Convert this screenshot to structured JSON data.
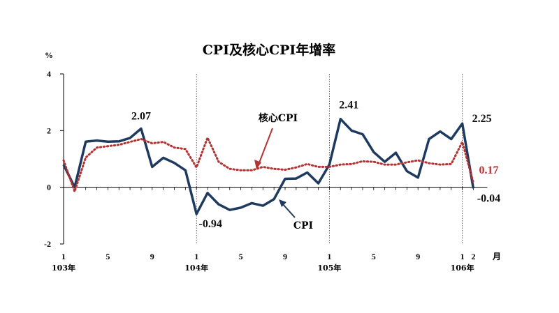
{
  "chart_data": {
    "type": "line",
    "title": "CPI及核心CPI年增率",
    "y_unit": "%",
    "ylim": [
      -2,
      4
    ],
    "yticks": [
      "4",
      "2",
      "0",
      "-2"
    ],
    "x_tick_labels": [
      {
        "label": "1",
        "year": "103年"
      },
      {
        "label": "5",
        "year": ""
      },
      {
        "label": "9",
        "year": ""
      },
      {
        "label": "1",
        "year": "104年"
      },
      {
        "label": "5",
        "year": ""
      },
      {
        "label": "9",
        "year": ""
      },
      {
        "label": "1",
        "year": "105年"
      },
      {
        "label": "5",
        "year": ""
      },
      {
        "label": "9",
        "year": ""
      },
      {
        "label": "1",
        "year": "106年"
      },
      {
        "label": "2",
        "year": ""
      }
    ],
    "x_unit": "月",
    "series": [
      {
        "name": "CPI",
        "color": "#1f3a5f",
        "style": "solid",
        "values": [
          0.8,
          0.0,
          1.61,
          1.65,
          1.61,
          1.62,
          1.74,
          2.07,
          0.72,
          1.04,
          0.86,
          0.6,
          -0.94,
          -0.2,
          -0.6,
          -0.8,
          -0.72,
          -0.56,
          -0.65,
          -0.42,
          0.3,
          0.31,
          0.52,
          0.14,
          0.8,
          2.41,
          2.0,
          1.87,
          1.24,
          0.9,
          1.22,
          0.57,
          0.34,
          1.7,
          1.97,
          1.7,
          2.25,
          -0.04
        ]
      },
      {
        "name": "核心CPI",
        "color": "#b33333",
        "style": "dotted",
        "values": [
          0.95,
          -0.15,
          1.05,
          1.4,
          1.45,
          1.5,
          1.6,
          1.7,
          1.55,
          1.6,
          1.4,
          1.35,
          0.7,
          1.75,
          0.9,
          0.65,
          0.6,
          0.6,
          0.72,
          0.65,
          0.62,
          0.7,
          0.82,
          0.72,
          0.72,
          0.8,
          0.82,
          0.92,
          0.9,
          0.8,
          0.8,
          0.88,
          0.95,
          0.85,
          0.8,
          0.82,
          1.6,
          0.17
        ]
      }
    ],
    "annotations": [
      {
        "text": "2.07",
        "series": "CPI",
        "index": 7
      },
      {
        "text": "-0.94",
        "series": "CPI",
        "index": 12
      },
      {
        "text": "2.41",
        "series": "CPI",
        "index": 25
      },
      {
        "text": "2.25",
        "series": "CPI",
        "index": 36
      },
      {
        "text": "-0.04",
        "series": "CPI",
        "index": 37
      },
      {
        "text": "0.17",
        "series": "核心CPI",
        "index": 37
      }
    ],
    "callouts": {
      "core_label": "核心CPI",
      "cpi_label": "CPI"
    }
  }
}
